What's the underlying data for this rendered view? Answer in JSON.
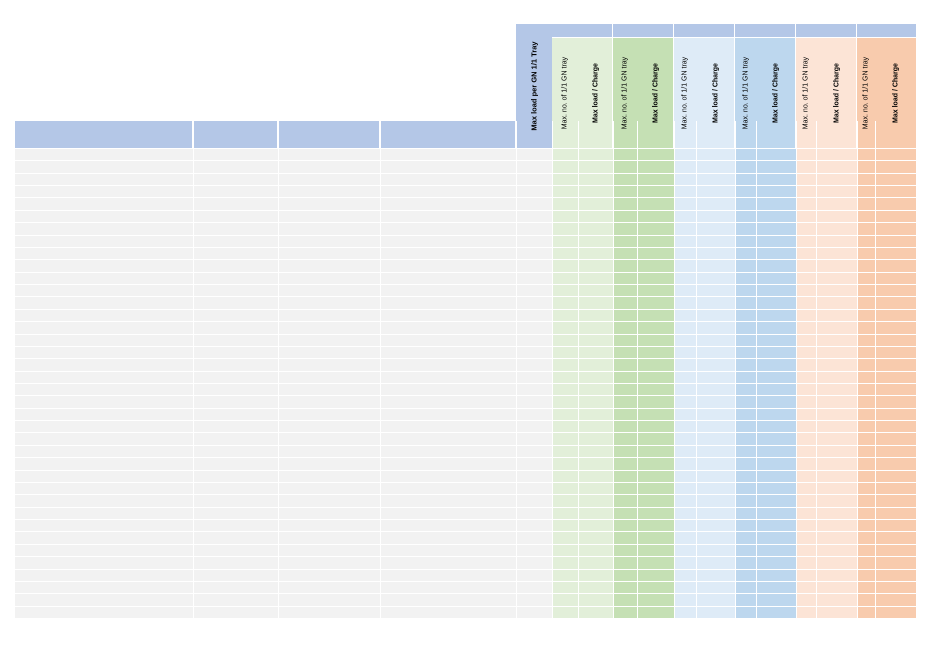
{
  "colors": {
    "header_blue": "#b4c7e7",
    "left_body": "#f2f2f2",
    "max_tray_body": "#f2f2f2",
    "green_light_header": "#e2efd9",
    "green_light_body": "#e2efd9",
    "green_dark": "#c5e0b4",
    "blue_light": "#deebf7",
    "blue_dark": "#bdd7ee",
    "orange_light": "#fce4d6",
    "orange_dark": "#f8cbad"
  },
  "max_tray_header": "Max load per GN 1/1 Tray",
  "column_groups": [
    {
      "name": "group-green-1",
      "tray_label": "Max. no. of 1/1 GN tray",
      "load_label": "Max load  / Charge",
      "tray_color": "#e2efd9",
      "load_color": "#e2efd9"
    },
    {
      "name": "group-green-2",
      "tray_label": "Max. no. of 1/1 GN tray",
      "load_label": "Max load  / Charge",
      "tray_color": "#c5e0b4",
      "load_color": "#c5e0b4"
    },
    {
      "name": "group-blue-1",
      "tray_label": "Max. no. of 1/1 GN tray",
      "load_label": "Max load  / Charge",
      "tray_color": "#deebf7",
      "load_color": "#deebf7"
    },
    {
      "name": "group-blue-2",
      "tray_label": "Max. no. of 1/1 GN tray",
      "load_label": "Max load  / Charge",
      "tray_color": "#bdd7ee",
      "load_color": "#bdd7ee"
    },
    {
      "name": "group-orange-1",
      "tray_label": "Max. no. of 1/1 GN tray",
      "load_label": "Max load  / Charge",
      "tray_color": "#fce4d6",
      "load_color": "#fce4d6"
    },
    {
      "name": "group-orange-2",
      "tray_label": "Max. no. of 1/1 GN tray",
      "load_label": "Max load  / Charge",
      "tray_color": "#f8cbad",
      "load_color": "#f8cbad"
    }
  ],
  "row_count": 38
}
